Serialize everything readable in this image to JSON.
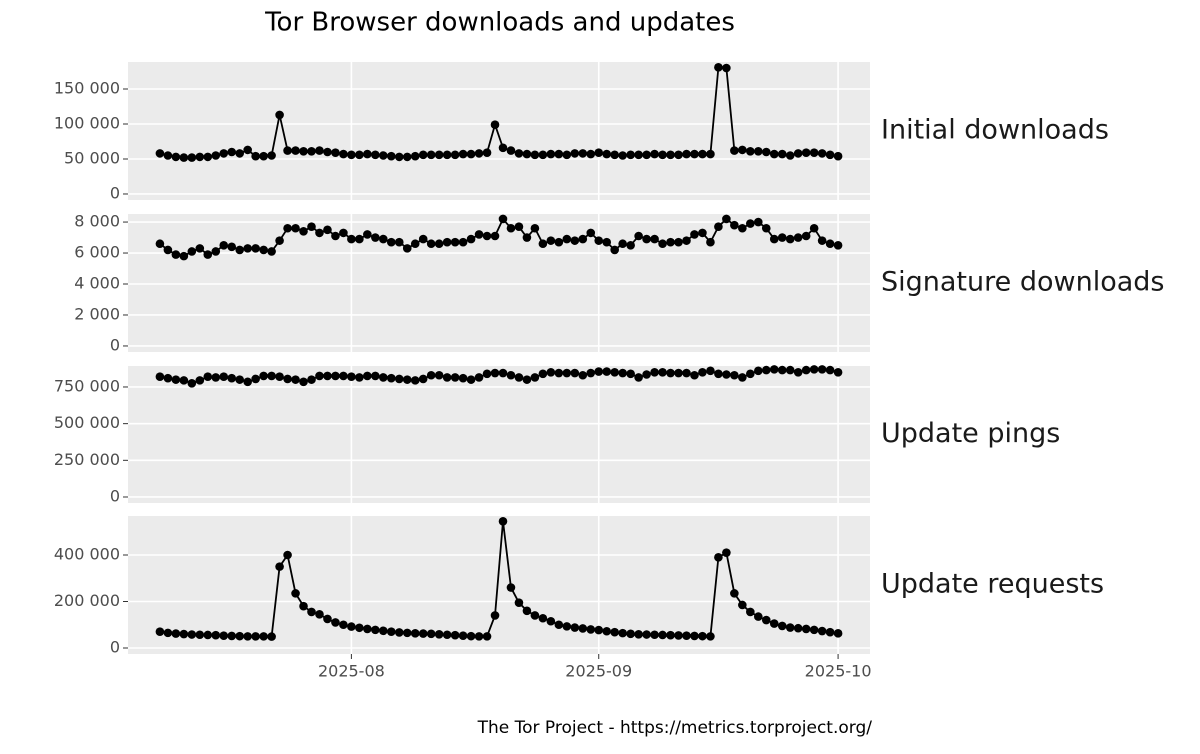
{
  "title": "Tor Browser downloads and updates",
  "caption": "The Tor Project - https://metrics.torproject.org/",
  "chart_data": [
    {
      "type": "line",
      "title": "Initial downloads",
      "color": "#000000",
      "grid": true,
      "ylim": [
        -8600,
        188600
      ],
      "yticks": [
        0,
        {
          "value": 50000,
          "label": "50 000"
        },
        {
          "value": 100000,
          "label": "100 000"
        },
        {
          "value": 150000,
          "label": "150 000"
        }
      ],
      "values": [
        58000,
        55000,
        53000,
        52000,
        52000,
        53000,
        53000,
        55000,
        58000,
        60000,
        58000,
        63000,
        54000,
        54000,
        55000,
        113000,
        62000,
        62000,
        61000,
        61000,
        62000,
        60000,
        59000,
        57000,
        56000,
        56000,
        57000,
        56000,
        55000,
        54000,
        53000,
        53000,
        54000,
        56000,
        56000,
        56000,
        56000,
        56000,
        57000,
        57000,
        58000,
        59000,
        99000,
        66000,
        62000,
        58000,
        57000,
        56000,
        56000,
        57000,
        57000,
        56000,
        58000,
        58000,
        57000,
        59000,
        57000,
        56000,
        55000,
        56000,
        56000,
        56000,
        57000,
        56000,
        56000,
        56000,
        57000,
        57000,
        57000,
        57000,
        181000,
        180000,
        62000,
        63000,
        61000,
        61000,
        60000,
        57000,
        57000,
        55000,
        58000,
        59000,
        59000,
        58000,
        56000,
        54000
      ]
    },
    {
      "type": "line",
      "title": "Signature downloads",
      "color": "#000000",
      "grid": true,
      "ylim": [
        -390,
        8520
      ],
      "yticks": [
        0,
        {
          "value": 2000,
          "label": "2 000"
        },
        {
          "value": 4000,
          "label": "4 000"
        },
        {
          "value": 6000,
          "label": "6 000"
        },
        {
          "value": 8000,
          "label": "8 000"
        }
      ],
      "values": [
        6600,
        6200,
        5900,
        5800,
        6100,
        6300,
        5900,
        6100,
        6500,
        6400,
        6200,
        6300,
        6300,
        6200,
        6100,
        6800,
        7600,
        7600,
        7400,
        7700,
        7300,
        7500,
        7100,
        7300,
        6900,
        6900,
        7200,
        7000,
        6900,
        6700,
        6700,
        6300,
        6600,
        6900,
        6600,
        6600,
        6700,
        6700,
        6700,
        6900,
        7200,
        7100,
        7100,
        8200,
        7600,
        7700,
        7000,
        7600,
        6600,
        6800,
        6700,
        6900,
        6800,
        6900,
        7300,
        6800,
        6700,
        6200,
        6600,
        6500,
        7100,
        6900,
        6900,
        6600,
        6700,
        6700,
        6800,
        7200,
        7300,
        6700,
        7700,
        8200,
        7800,
        7600,
        7900,
        8000,
        7600,
        6900,
        7000,
        6900,
        7000,
        7100,
        7600,
        6800,
        6600,
        6500
      ]
    },
    {
      "type": "line",
      "title": "Update pings",
      "color": "#000000",
      "grid": true,
      "ylim": [
        -41000,
        893000
      ],
      "yticks": [
        0,
        {
          "value": 250000,
          "label": "250 000"
        },
        {
          "value": 500000,
          "label": "500 000"
        },
        {
          "value": 750000,
          "label": "750 000"
        }
      ],
      "values": [
        820000,
        810000,
        800000,
        795000,
        775000,
        795000,
        820000,
        815000,
        820000,
        810000,
        800000,
        785000,
        805000,
        825000,
        825000,
        820000,
        805000,
        800000,
        785000,
        800000,
        825000,
        825000,
        825000,
        825000,
        820000,
        815000,
        825000,
        825000,
        815000,
        810000,
        805000,
        800000,
        795000,
        805000,
        830000,
        830000,
        815000,
        815000,
        810000,
        800000,
        815000,
        840000,
        845000,
        845000,
        830000,
        815000,
        800000,
        815000,
        840000,
        850000,
        845000,
        845000,
        845000,
        830000,
        845000,
        855000,
        855000,
        850000,
        845000,
        840000,
        815000,
        835000,
        850000,
        850000,
        845000,
        845000,
        845000,
        830000,
        850000,
        860000,
        840000,
        835000,
        830000,
        815000,
        840000,
        860000,
        865000,
        870000,
        865000,
        865000,
        850000,
        865000,
        870000,
        870000,
        865000,
        850000
      ]
    },
    {
      "type": "line",
      "title": "Update requests",
      "color": "#000000",
      "grid": true,
      "ylim": [
        -25800,
        567700
      ],
      "yticks": [
        0,
        {
          "value": 200000,
          "label": "200 000"
        },
        {
          "value": 400000,
          "label": "400 000"
        }
      ],
      "xlim": [
        -4,
        89
      ],
      "xticks": [
        {
          "value": 24,
          "label": "2025-08"
        },
        {
          "value": 55,
          "label": "2025-09"
        },
        {
          "value": 85,
          "label": "2025-10"
        }
      ],
      "values": [
        70000,
        65000,
        62000,
        60000,
        58000,
        57000,
        56000,
        55000,
        53000,
        52000,
        51000,
        50000,
        50000,
        50000,
        49000,
        350000,
        400000,
        235000,
        180000,
        155000,
        145000,
        125000,
        110000,
        100000,
        92000,
        87000,
        82000,
        78000,
        74000,
        70000,
        67000,
        65000,
        63000,
        62000,
        61000,
        59000,
        57000,
        55000,
        53000,
        51000,
        50000,
        50000,
        140000,
        545000,
        260000,
        195000,
        160000,
        140000,
        128000,
        115000,
        100000,
        93000,
        88000,
        84000,
        80000,
        77000,
        72000,
        68000,
        64000,
        61000,
        59000,
        58000,
        57000,
        56000,
        55000,
        54000,
        53000,
        52000,
        51000,
        50000,
        390000,
        410000,
        235000,
        185000,
        155000,
        135000,
        120000,
        105000,
        95000,
        88000,
        85000,
        82000,
        78000,
        73000,
        68000,
        63000
      ]
    }
  ]
}
